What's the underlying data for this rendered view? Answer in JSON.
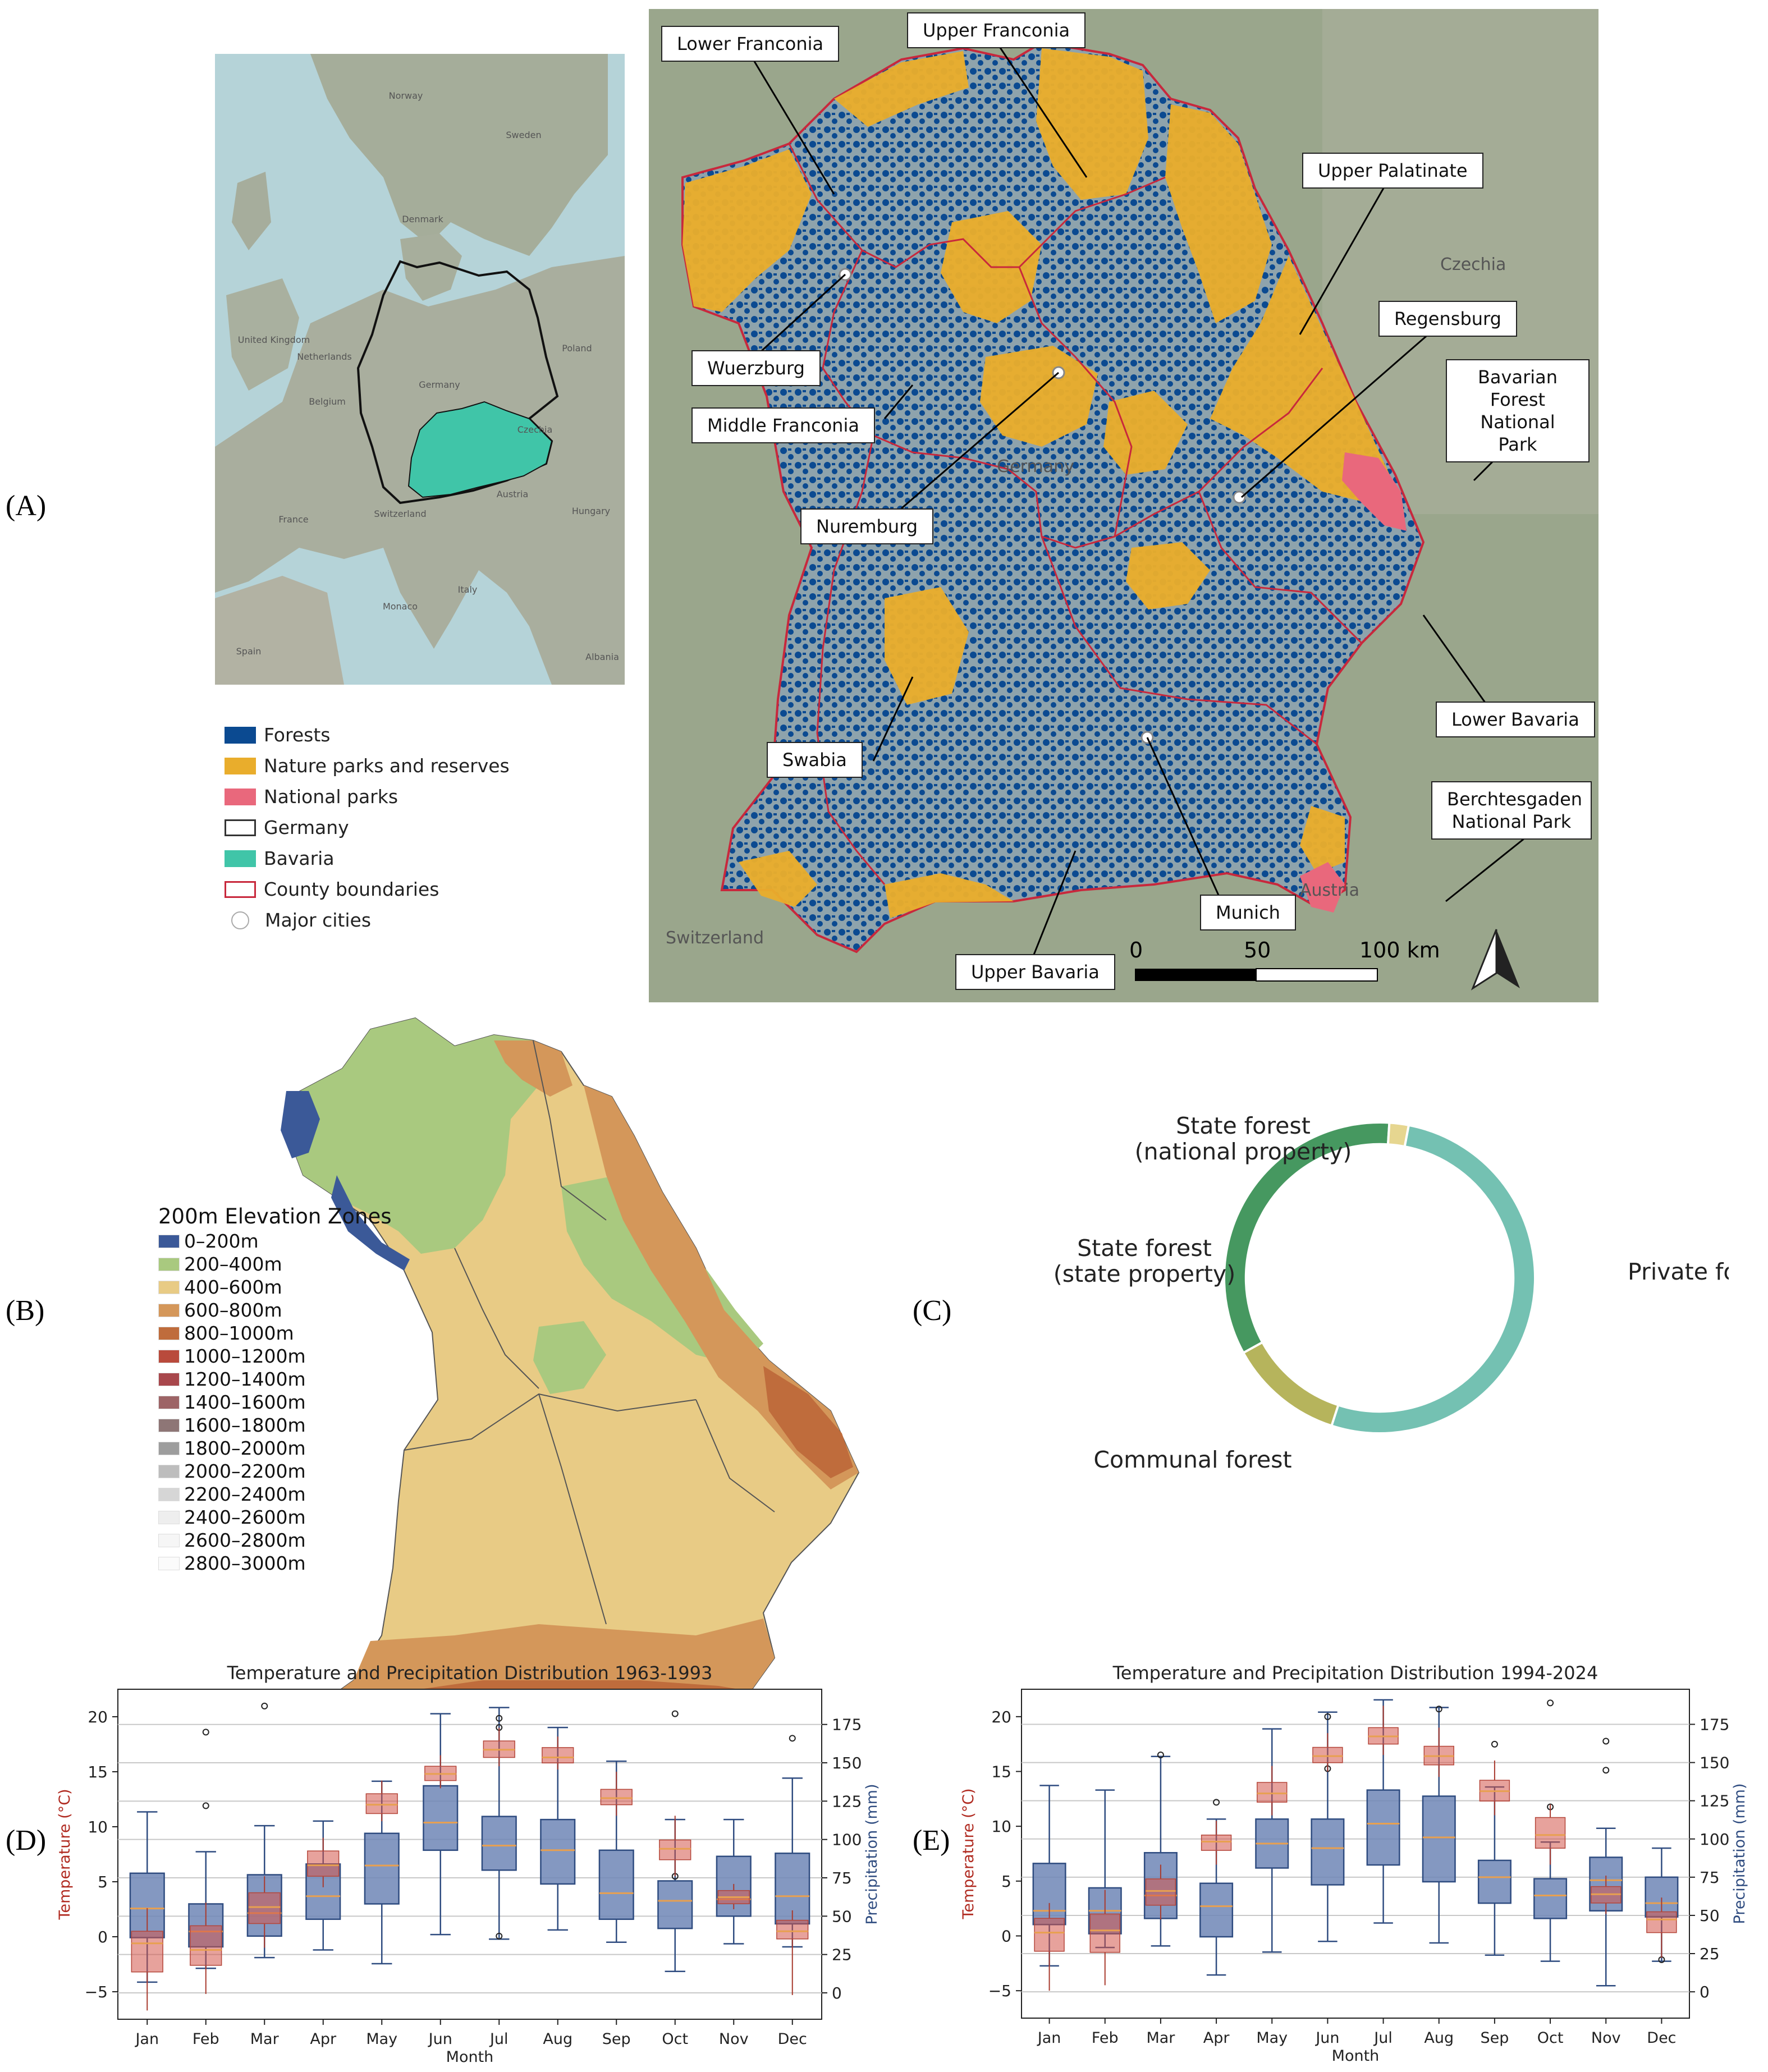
{
  "panel_labels": {
    "a": "(A)",
    "b": "(B)",
    "c": "(C)",
    "d": "(D)",
    "e": "(E)"
  },
  "panel_a": {
    "europe_labels": [
      "Norway",
      "Sweden",
      "Denmark",
      "United Kingdom",
      "Netherlands",
      "Belgium",
      "Germany",
      "Poland",
      "Czechia",
      "France",
      "Switzerland",
      "Austria",
      "Hungary",
      "Monaco",
      "Italy",
      "Spain",
      "Albania"
    ],
    "regions": [
      "Lower Franconia",
      "Upper Franconia",
      "Upper Palatinate",
      "Regensburg",
      "Bavarian Forest National Park",
      "Wuerzburg",
      "Middle Franconia",
      "Nuremburg",
      "Swabia",
      "Lower Bavaria",
      "Berchtesgaden National Park",
      "Munich",
      "Upper Bavaria"
    ],
    "map_text": {
      "czechia": "Czechia",
      "germany": "Germany",
      "austria": "Austria",
      "switzerland": "Switzerland"
    },
    "scale": {
      "s0": "0",
      "s50": "50",
      "s100": "100 km"
    },
    "legend": [
      "Forests",
      "Nature parks and reserves",
      "National parks",
      "Germany",
      "Bavaria",
      "County boundaries",
      "Major cities"
    ],
    "colors": {
      "forest": "#0b4a91",
      "nature": "#e9ad2c",
      "national": "#e9687c",
      "bavaria": "#40c5a8",
      "county": "#c8283c"
    }
  },
  "panel_b": {
    "legend_title": "200m Elevation Zones",
    "zones": [
      {
        "label": "0–200m",
        "color": "#3b5998"
      },
      {
        "label": "200–400m",
        "color": "#a9c97f"
      },
      {
        "label": "400–600m",
        "color": "#e8cb85"
      },
      {
        "label": "600–800m",
        "color": "#d4975a"
      },
      {
        "label": "800–1000m",
        "color": "#bf6c3c"
      },
      {
        "label": "1000–1200m",
        "color": "#b94a3c"
      },
      {
        "label": "1200–1400m",
        "color": "#a8474c"
      },
      {
        "label": "1400–1600m",
        "color": "#9d6466"
      },
      {
        "label": "1600–1800m",
        "color": "#8e7676"
      },
      {
        "label": "1800–2000m",
        "color": "#9d9d9d"
      },
      {
        "label": "2000–2200m",
        "color": "#bdbdbd"
      },
      {
        "label": "2200–2400m",
        "color": "#d6d6d6"
      },
      {
        "label": "2400–2600m",
        "color": "#eeeeee"
      },
      {
        "label": "2600–2800m",
        "color": "#f6f6f6"
      },
      {
        "label": "2800–3000m",
        "color": "#fbfbfb"
      }
    ]
  },
  "chart_data": [
    {
      "type": "pie",
      "title": "",
      "categories": [
        "Private forest",
        "Communal forest",
        "State forest (state property)",
        "State forest (national property)"
      ],
      "labels_display": [
        [
          "Private forest"
        ],
        [
          "Communal forest"
        ],
        [
          "State forest",
          "(state property)"
        ],
        [
          "State forest",
          "(national property)"
        ]
      ],
      "values": [
        52,
        12,
        34,
        2
      ],
      "colors": [
        "#74c1b2",
        "#b6b45c",
        "#469860",
        "#e6d690"
      ],
      "hole": 0.86
    },
    {
      "type": "box",
      "title": "Temperature and Precipitation Distribution 1963-1993",
      "xlabel": "Month",
      "ylabel_left": "Temperature (°C)",
      "ylabel_right": "Precipitation (mm)",
      "months": [
        "Jan",
        "Feb",
        "Mar",
        "Apr",
        "May",
        "Jun",
        "Jul",
        "Aug",
        "Sep",
        "Oct",
        "Nov",
        "Dec"
      ],
      "ylim_left": [
        -7.5,
        22.5
      ],
      "yticks_left": [
        -5,
        0,
        5,
        10,
        15,
        20
      ],
      "yticks_right": [
        0,
        25,
        50,
        75,
        100,
        125,
        150,
        175
      ],
      "temperature": [
        {
          "min": -6.7,
          "q1": -3.2,
          "med": -0.6,
          "q3": 0.5,
          "max": 2.6
        },
        {
          "min": -5.2,
          "q1": -2.6,
          "med": -1.2,
          "q3": 1.0,
          "max": 3.1
        },
        {
          "min": -1.0,
          "q1": 1.2,
          "med": 2.7,
          "q3": 4.0,
          "max": 5.5
        },
        {
          "min": 4.5,
          "q1": 5.5,
          "med": 6.5,
          "q3": 7.8,
          "max": 9.0
        },
        {
          "min": 10.5,
          "q1": 11.2,
          "med": 12.0,
          "q3": 13.0,
          "max": 14.2
        },
        {
          "min": 13.5,
          "q1": 14.2,
          "med": 14.8,
          "q3": 15.5,
          "max": 16.5
        },
        {
          "min": 15.5,
          "q1": 16.3,
          "med": 17.0,
          "q3": 17.8,
          "max": 19.0
        },
        {
          "min": 15.2,
          "q1": 15.8,
          "med": 16.3,
          "q3": 17.2,
          "max": 18.2
        },
        {
          "min": 11.0,
          "q1": 12.0,
          "med": 12.6,
          "q3": 13.4,
          "max": 15.0
        },
        {
          "min": 5.5,
          "q1": 7.0,
          "med": 8.0,
          "q3": 8.8,
          "max": 11.0
        },
        {
          "min": 2.5,
          "q1": 3.0,
          "med": 3.6,
          "q3": 4.2,
          "max": 4.8
        },
        {
          "min": -5.3,
          "q1": -0.2,
          "med": 0.5,
          "q3": 1.5,
          "max": 2.4
        }
      ],
      "precipitation": [
        {
          "min": 7,
          "q1": 36,
          "med": 55,
          "q3": 78,
          "max": 118
        },
        {
          "min": 16,
          "q1": 30,
          "med": 40,
          "q3": 58,
          "max": 92,
          "outliers": [
            170,
            122
          ]
        },
        {
          "min": 23,
          "q1": 37,
          "med": 52,
          "q3": 77,
          "max": 109,
          "outliers": [
            187
          ]
        },
        {
          "min": 28,
          "q1": 48,
          "med": 63,
          "q3": 84,
          "max": 112
        },
        {
          "min": 19,
          "q1": 58,
          "med": 83,
          "q3": 104,
          "max": 138
        },
        {
          "min": 38,
          "q1": 93,
          "med": 111,
          "q3": 135,
          "max": 182
        },
        {
          "min": 35,
          "q1": 80,
          "med": 96,
          "q3": 115,
          "max": 186,
          "outliers": [
            179,
            173,
            37
          ]
        },
        {
          "min": 41,
          "q1": 71,
          "med": 93,
          "q3": 113,
          "max": 173
        },
        {
          "min": 33,
          "q1": 48,
          "med": 65,
          "q3": 93,
          "max": 151
        },
        {
          "min": 14,
          "q1": 42,
          "med": 60,
          "q3": 73,
          "max": 113,
          "outliers": [
            182,
            76
          ]
        },
        {
          "min": 32,
          "q1": 50,
          "med": 61,
          "q3": 89,
          "max": 113
        },
        {
          "min": 30,
          "q1": 45,
          "med": 63,
          "q3": 91,
          "max": 140,
          "outliers": [
            166
          ]
        }
      ]
    },
    {
      "type": "box",
      "title": "Temperature and Precipitation Distribution 1994-2024",
      "xlabel": "Month",
      "ylabel_left": "Temperature (°C)",
      "ylabel_right": "Precipitation (mm)",
      "months": [
        "Jan",
        "Feb",
        "Mar",
        "Apr",
        "May",
        "Jun",
        "Jul",
        "Aug",
        "Sep",
        "Oct",
        "Nov",
        "Dec"
      ],
      "ylim_left": [
        -7.5,
        22.5
      ],
      "yticks_left": [
        -5,
        0,
        5,
        10,
        15,
        20
      ],
      "yticks_right": [
        0,
        25,
        50,
        75,
        100,
        125,
        150,
        175
      ],
      "temperature": [
        {
          "min": -5.0,
          "q1": -1.4,
          "med": 0.3,
          "q3": 1.6,
          "max": 3.0
        },
        {
          "min": -4.5,
          "q1": -1.5,
          "med": 0.5,
          "q3": 2.0,
          "max": 4.2
        },
        {
          "min": 1.5,
          "q1": 2.8,
          "med": 4.1,
          "q3": 5.2,
          "max": 6.5
        },
        {
          "min": 6.5,
          "q1": 7.8,
          "med": 8.6,
          "q3": 9.2,
          "max": 10.5
        },
        {
          "min": 11.0,
          "q1": 12.2,
          "med": 13.0,
          "q3": 14.0,
          "max": 15.5
        },
        {
          "min": 15.0,
          "q1": 15.8,
          "med": 16.4,
          "q3": 17.2,
          "max": 18.5
        },
        {
          "min": 16.5,
          "q1": 17.5,
          "med": 18.2,
          "q3": 19.0,
          "max": 21.0
        },
        {
          "min": 14.5,
          "q1": 15.6,
          "med": 16.4,
          "q3": 17.3,
          "max": 19.0
        },
        {
          "min": 11.0,
          "q1": 12.3,
          "med": 13.2,
          "q3": 14.2,
          "max": 16.0
        },
        {
          "min": 6.5,
          "q1": 8.0,
          "med": 9.2,
          "q3": 10.8,
          "max": 12.0
        },
        {
          "min": 2.0,
          "q1": 3.0,
          "med": 3.8,
          "q3": 4.5,
          "max": 5.5
        },
        {
          "min": -2.0,
          "q1": 0.3,
          "med": 1.5,
          "q3": 2.2,
          "max": 3.5
        }
      ],
      "precipitation": [
        {
          "min": 17,
          "q1": 44,
          "med": 53,
          "q3": 84,
          "max": 135
        },
        {
          "min": 29,
          "q1": 38,
          "med": 53,
          "q3": 68,
          "max": 132
        },
        {
          "min": 30,
          "q1": 48,
          "med": 63,
          "q3": 91,
          "max": 154,
          "outliers": [
            155
          ]
        },
        {
          "min": 11,
          "q1": 36,
          "med": 56,
          "q3": 71,
          "max": 113,
          "outliers": [
            124
          ]
        },
        {
          "min": 26,
          "q1": 81,
          "med": 97,
          "q3": 113,
          "max": 172
        },
        {
          "min": 33,
          "q1": 70,
          "med": 94,
          "q3": 113,
          "max": 183,
          "outliers": [
            180,
            146
          ]
        },
        {
          "min": 45,
          "q1": 83,
          "med": 110,
          "q3": 132,
          "max": 191
        },
        {
          "min": 32,
          "q1": 72,
          "med": 101,
          "q3": 128,
          "max": 186,
          "outliers": [
            185
          ]
        },
        {
          "min": 24,
          "q1": 58,
          "med": 75,
          "q3": 86,
          "max": 134,
          "outliers": [
            162
          ]
        },
        {
          "min": 20,
          "q1": 48,
          "med": 63,
          "q3": 74,
          "max": 98,
          "outliers": [
            189,
            121
          ]
        },
        {
          "min": 4,
          "q1": 53,
          "med": 73,
          "q3": 88,
          "max": 107,
          "outliers": [
            164,
            145
          ]
        },
        {
          "min": 20,
          "q1": 49,
          "med": 58,
          "q3": 75,
          "max": 94,
          "outliers": [
            21
          ]
        }
      ]
    }
  ]
}
